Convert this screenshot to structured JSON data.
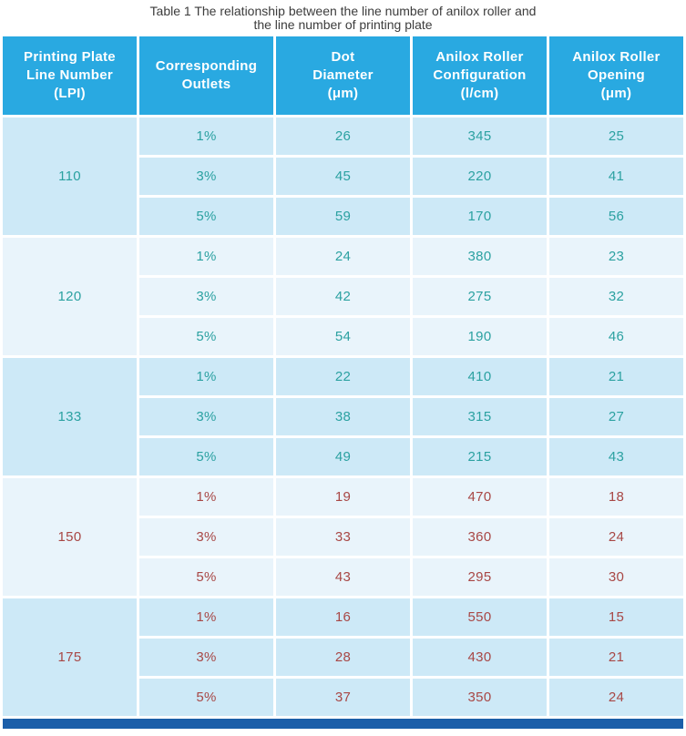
{
  "title": {
    "line1": "Table 1 The relationship between the line number of anilox roller and",
    "line2": "the line number of printing plate"
  },
  "colors": {
    "header-bg": "#29a9e1",
    "header-text": "#ffffff",
    "row-bg-a": "#cde9f7",
    "row-bg-b": "#e9f4fb",
    "text-teal": "#2ba1a1",
    "text-red": "#a84745",
    "title-text": "#3c3c3c",
    "bottom-bar": "#1b5ea9"
  },
  "table": {
    "headers": [
      {
        "lines": [
          "Printing Plate",
          "Line Number",
          "(LPI)"
        ]
      },
      {
        "lines": [
          "Corresponding",
          "Outlets"
        ]
      },
      {
        "lines": [
          "Dot",
          "Diameter",
          "(μm)"
        ]
      },
      {
        "lines": [
          "Anilox Roller",
          "Configuration",
          "(l/cm)"
        ]
      },
      {
        "lines": [
          "Anilox Roller",
          "Opening",
          "(μm)"
        ]
      }
    ],
    "groups": [
      {
        "lpi": "110",
        "rows": [
          {
            "outlets": "1%",
            "dot": "26",
            "anilox": "345",
            "opening": "25"
          },
          {
            "outlets": "3%",
            "dot": "45",
            "anilox": "220",
            "opening": "41"
          },
          {
            "outlets": "5%",
            "dot": "59",
            "anilox": "170",
            "opening": "56"
          }
        ]
      },
      {
        "lpi": "120",
        "rows": [
          {
            "outlets": "1%",
            "dot": "24",
            "anilox": "380",
            "opening": "23"
          },
          {
            "outlets": "3%",
            "dot": "42",
            "anilox": "275",
            "opening": "32"
          },
          {
            "outlets": "5%",
            "dot": "54",
            "anilox": "190",
            "opening": "46"
          }
        ]
      },
      {
        "lpi": "133",
        "rows": [
          {
            "outlets": "1%",
            "dot": "22",
            "anilox": "410",
            "opening": "21"
          },
          {
            "outlets": "3%",
            "dot": "38",
            "anilox": "315",
            "opening": "27"
          },
          {
            "outlets": "5%",
            "dot": "49",
            "anilox": "215",
            "opening": "43"
          }
        ]
      },
      {
        "lpi": "150",
        "rows": [
          {
            "outlets": "1%",
            "dot": "19",
            "anilox": "470",
            "opening": "18"
          },
          {
            "outlets": "3%",
            "dot": "33",
            "anilox": "360",
            "opening": "24"
          },
          {
            "outlets": "5%",
            "dot": "43",
            "anilox": "295",
            "opening": "30"
          }
        ]
      },
      {
        "lpi": "175",
        "rows": [
          {
            "outlets": "1%",
            "dot": "16",
            "anilox": "550",
            "opening": "15"
          },
          {
            "outlets": "3%",
            "dot": "28",
            "anilox": "430",
            "opening": "21"
          },
          {
            "outlets": "5%",
            "dot": "37",
            "anilox": "350",
            "opening": "24"
          }
        ]
      }
    ]
  },
  "chart_data": {
    "type": "table",
    "title": "Table 1 The relationship between the line number of anilox roller and the line number of printing plate",
    "columns": [
      "Printing Plate Line Number (LPI)",
      "Corresponding Outlets",
      "Dot Diameter (μm)",
      "Anilox Roller Configuration (l/cm)",
      "Anilox Roller Opening (μm)"
    ],
    "rows": [
      [
        "110",
        "1%",
        "26",
        "345",
        "25"
      ],
      [
        "110",
        "3%",
        "45",
        "220",
        "41"
      ],
      [
        "110",
        "5%",
        "59",
        "170",
        "56"
      ],
      [
        "120",
        "1%",
        "24",
        "380",
        "23"
      ],
      [
        "120",
        "3%",
        "42",
        "275",
        "32"
      ],
      [
        "120",
        "5%",
        "54",
        "190",
        "46"
      ],
      [
        "133",
        "1%",
        "22",
        "410",
        "21"
      ],
      [
        "133",
        "3%",
        "38",
        "315",
        "27"
      ],
      [
        "133",
        "5%",
        "49",
        "215",
        "43"
      ],
      [
        "150",
        "1%",
        "19",
        "470",
        "18"
      ],
      [
        "150",
        "3%",
        "33",
        "360",
        "24"
      ],
      [
        "150",
        "5%",
        "43",
        "295",
        "30"
      ],
      [
        "175",
        "1%",
        "16",
        "550",
        "15"
      ],
      [
        "175",
        "3%",
        "28",
        "430",
        "21"
      ],
      [
        "175",
        "5%",
        "37",
        "350",
        "24"
      ]
    ]
  }
}
